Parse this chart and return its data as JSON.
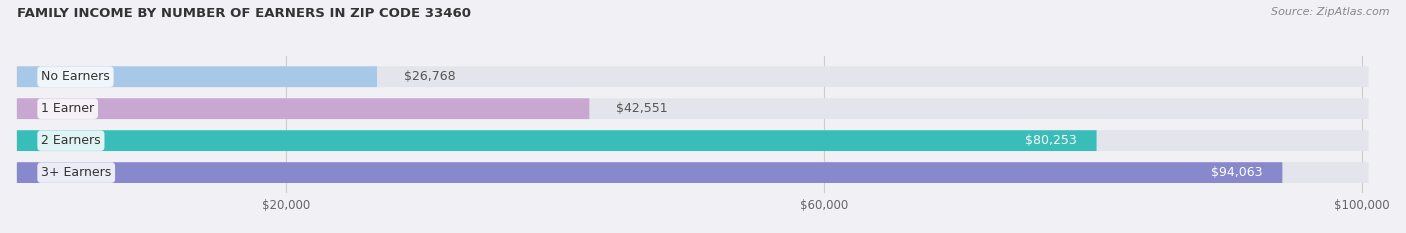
{
  "title": "FAMILY INCOME BY NUMBER OF EARNERS IN ZIP CODE 33460",
  "source": "Source: ZipAtlas.com",
  "categories": [
    "No Earners",
    "1 Earner",
    "2 Earners",
    "3+ Earners"
  ],
  "values": [
    26768,
    42551,
    80253,
    94063
  ],
  "bar_colors": [
    "#a8c8e8",
    "#c8a8d0",
    "#38bdb8",
    "#8888cc"
  ],
  "tick_labels": [
    "$20,000",
    "$60,000",
    "$100,000"
  ],
  "tick_values": [
    20000,
    60000,
    100000
  ],
  "xmax": 102000,
  "bar_height": 0.65,
  "background_color": "#f0f0f5",
  "bar_bg_color": "#e4e4ec",
  "value_labels": [
    "$26,768",
    "$42,551",
    "$80,253",
    "$94,063"
  ],
  "figsize": [
    14.06,
    2.33
  ],
  "dpi": 100
}
